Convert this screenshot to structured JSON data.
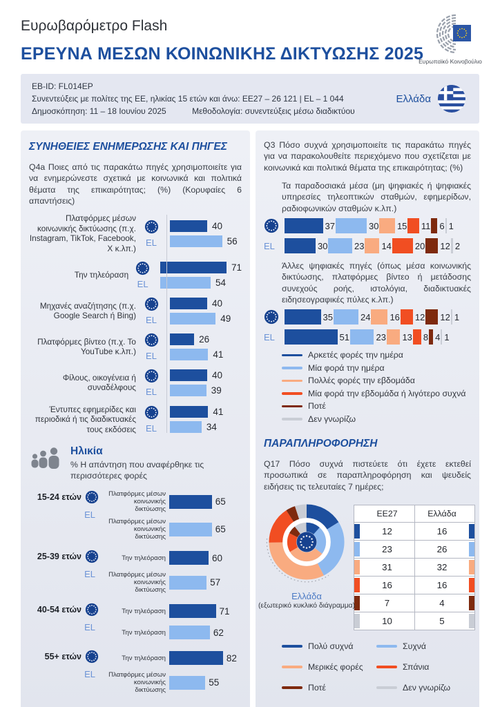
{
  "header": {
    "kicker": "Ευρωβαρόμετρο Flash",
    "title": "ΕΡΕΥΝΑ ΜΕΣΩΝ ΚΟΙΝΩΝΙΚΗΣ ΔΙΚΤΥΩΣΗΣ 2025",
    "logo_caption": "Ευρωπαϊκό Κοινοβούλιο"
  },
  "infobox": {
    "eb_id": "EB-ID: FL014EP",
    "sample": "Συνεντεύξεις με πολίτες της ΕΕ, ηλικίας 15 ετών και άνω: ΕΕ27 – 26 121 | EL – 1 044",
    "fieldwork": "Δημοσκόπηση: 11 – 18 Ιουνίου 2025",
    "methodology": "Μεθοδολογία: συνεντεύξεις μέσω διαδικτύου",
    "country": "Ελλάδα"
  },
  "left": {
    "section_title": "ΣΥΝΗΘΕΙΕΣ ΕΝΗΜΕΡΩΣΗΣ ΚΑΙ ΠΗΓΕΣ",
    "q4a": "Q4a Ποιες από τις παρακάτω πηγές χρησιμοποιείτε για να ενημερώνεστε σχετικά με κοινωνικά και πολιτικά θέματα της επικαιρότητας; (%) (Κορυφαίες 6 απαντήσεις)",
    "age": {
      "title": "Ηλικία",
      "subtitle": "% Η απάντηση που αναφέρθηκε τις περισσότερες φορές"
    }
  },
  "right": {
    "q3": "Q3 Πόσο συχνά χρησιμοποιείτε τις παρακάτω πηγές για να παρακολουθείτε περιεχόμενο που σχετίζεται με κοινωνικά και πολιτικά θέματα της επικαιρότητας; (%)",
    "disinfo_title": "ΠΑΡΑΠΛΗΡΟΦΟΡΗΣΗ",
    "q17": "Q17 Πόσο συχνά πιστεύετε ότι έχετε εκτεθεί προσωπικά σε παραπληροφόρηση και ψευδείς ειδήσεις τις τελευταίες 7 ημέρες;",
    "donut_caption_country": "Ελλάδα",
    "donut_caption_note": "(εξωτερικό κυκλικό διάγραμμα)"
  },
  "chart_data": [
    {
      "id": "q4a_sources",
      "type": "bar",
      "orientation": "horizontal",
      "title": "Q4a Ποιες από τις παρακάτω πηγές χρησιμοποιείτε για να ενημερώνεστε σχετικά με κοινωνικά και πολιτικά θέματα της επικαιρότητας; (%) (Κορυφαίες 6 απαντήσεις)",
      "categories": [
        "Πλατφόρμες μέσων κοινωνικής δικτύωσης (π.χ. Instagram, TikTok, Facebook, X κ.λπ.)",
        "Την τηλεόραση",
        "Μηχανές αναζήτησης (π.χ. Google Search ή Bing)",
        "Πλατφόρμες βίντεο (π.χ. Το YouTube κ.λπ.)",
        "Φίλους, οικογένεια ή συναδέλφους",
        "Έντυπες εφημερίδες και περιοδικά ή τις διαδικτυακές τους εκδόσεις"
      ],
      "series": [
        {
          "name": "ΕΕ27",
          "values": [
            40,
            71,
            40,
            26,
            40,
            41
          ]
        },
        {
          "name": "EL",
          "values": [
            56,
            54,
            49,
            41,
            39,
            34
          ]
        }
      ],
      "xlim": [
        0,
        100
      ]
    },
    {
      "id": "q3_traditional_media",
      "type": "bar",
      "stacked": true,
      "orientation": "horizontal",
      "subtitle": "Τα παραδοσιακά μέσα (μη ψηφιακές ή ψηφιακές υπηρεσίες τηλεοπτικών σταθμών, εφημερίδων, ραδιοφωνικών σταθμών κ.λπ.)",
      "categories": [
        "ΕΕ27",
        "EL"
      ],
      "series": [
        {
          "name": "Αρκετές φορές την ημέρα",
          "values": [
            37,
            30
          ]
        },
        {
          "name": "Μία φορά την ημέρα",
          "values": [
            30,
            23
          ]
        },
        {
          "name": "Πολλές φορές την εβδομάδα",
          "values": [
            15,
            14
          ]
        },
        {
          "name": "Μία φορά την εβδομάδα ή λιγότερο συχνά",
          "values": [
            11,
            20
          ]
        },
        {
          "name": "Ποτέ",
          "values": [
            6,
            12
          ]
        },
        {
          "name": "Δεν γνωρίζω",
          "values": [
            1,
            2
          ]
        }
      ]
    },
    {
      "id": "q3_other_digital_sources",
      "type": "bar",
      "stacked": true,
      "orientation": "horizontal",
      "subtitle": "Άλλες ψηφιακές πηγές (όπως μέσα κοινωνικής δικτύωσης, πλατφόρμες βίντεο ή μετάδοσης συνεχούς ροής, ιστολόγια, διαδικτυακές ειδησεογραφικές πύλες κ.λπ.)",
      "categories": [
        "ΕΕ27",
        "EL"
      ],
      "series": [
        {
          "name": "Αρκετές φορές την ημέρα",
          "values": [
            35,
            51
          ]
        },
        {
          "name": "Μία φορά την ημέρα",
          "values": [
            24,
            23
          ]
        },
        {
          "name": "Πολλές φορές την εβδομάδα",
          "values": [
            16,
            13
          ]
        },
        {
          "name": "Μία φορά την εβδομάδα ή λιγότερο συχνά",
          "values": [
            12,
            8
          ]
        },
        {
          "name": "Ποτέ",
          "values": [
            12,
            4
          ]
        },
        {
          "name": "Δεν γνωρίζω",
          "values": [
            1,
            1
          ]
        }
      ]
    },
    {
      "id": "q4a_by_age",
      "type": "bar",
      "orientation": "horizontal",
      "title": "Ηλικία — % Η απάντηση που αναφέρθηκε τις περισσότερες φορές",
      "rows": [
        {
          "group": "15-24 ετών",
          "eu_answer": "Πλατφόρμες μέσων κοινωνικής δικτύωσης",
          "eu_value": 65,
          "el_answer": "Πλατφόρμες μέσων κοινωνικής δικτύωσης",
          "el_value": 65
        },
        {
          "group": "25-39 ετών",
          "eu_answer": "Την τηλεόραση",
          "eu_value": 60,
          "el_answer": "Πλατφόρμες μέσων κοινωνικής δικτύωσης",
          "el_value": 57
        },
        {
          "group": "40-54 ετών",
          "eu_answer": "Την τηλεόραση",
          "eu_value": 71,
          "el_answer": "Την τηλεόραση",
          "el_value": 62
        },
        {
          "group": "55+ ετών",
          "eu_answer": "Την τηλεόραση",
          "eu_value": 82,
          "el_answer": "Πλατφόρμες μέσων κοινωνικής δικτύωσης",
          "el_value": 55
        }
      ]
    },
    {
      "id": "q17_exposure_donut",
      "type": "pie",
      "labels": [
        "Πολύ συχνά",
        "Συχνά",
        "Μερικές φορές",
        "Σπάνια",
        "Ποτέ",
        "Δεν γνωρίζω"
      ],
      "rings": [
        {
          "name": "ΕΕ27",
          "position": "inner",
          "values": [
            12,
            23,
            31,
            16,
            7,
            10
          ]
        },
        {
          "name": "Ελλάδα",
          "position": "outer",
          "values": [
            16,
            26,
            32,
            16,
            4,
            5
          ]
        }
      ],
      "center_icon": "eu-flag",
      "outer_ring_note": "Ελλάδα (εξωτερικό κυκλικό διάγραμμα)",
      "legend_position": "bottom"
    },
    {
      "id": "q17_exposure_table",
      "type": "table",
      "headers": [
        "ΕΕ27",
        "Ελλάδα"
      ],
      "rows": [
        [
          12,
          16
        ],
        [
          23,
          26
        ],
        [
          31,
          32
        ],
        [
          16,
          16
        ],
        [
          7,
          4
        ],
        [
          10,
          5
        ]
      ]
    }
  ],
  "colors": {
    "title_blue": "#1d4f9e",
    "eu_bar": "#1d4f9e",
    "el_bar": "#8db9ef",
    "el_label": "#6b93d6",
    "panel_bg": "#e9ebf3",
    "infobox_bg": "#e4e7f1",
    "scale": [
      "#1d4f9e",
      "#8db9ef",
      "#f9ab80",
      "#f14e22",
      "#7e2a0e",
      "#c9cdd5"
    ]
  }
}
